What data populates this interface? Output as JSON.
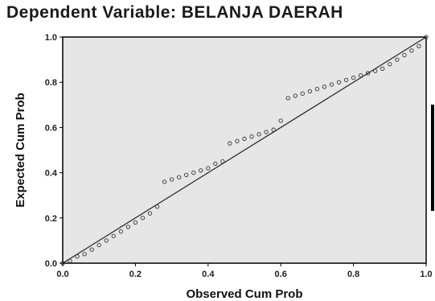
{
  "chart_data": {
    "type": "scatter",
    "title": "Dependent Variable: BELANJA DAERAH",
    "xlabel": "Observed Cum Prob",
    "ylabel": "Expected Cum Prob",
    "xlim": [
      0,
      1
    ],
    "ylim": [
      0,
      1
    ],
    "xticks": [
      "0.0",
      "0.2",
      "0.4",
      "0.6",
      "0.8",
      "1.0"
    ],
    "yticks": [
      "0.0",
      "0.2",
      "0.4",
      "0.6",
      "0.8",
      "1.0"
    ],
    "reference_line": [
      [
        0,
        0
      ],
      [
        1,
        1
      ]
    ],
    "grid": false,
    "plot_bg": "#e6e6e6",
    "point_color": "#333333",
    "line_color": "#222222",
    "points": [
      [
        0.0,
        0.0
      ],
      [
        0.02,
        0.01
      ],
      [
        0.04,
        0.03
      ],
      [
        0.06,
        0.04
      ],
      [
        0.08,
        0.06
      ],
      [
        0.1,
        0.08
      ],
      [
        0.12,
        0.1
      ],
      [
        0.14,
        0.12
      ],
      [
        0.16,
        0.14
      ],
      [
        0.18,
        0.16
      ],
      [
        0.2,
        0.18
      ],
      [
        0.22,
        0.2
      ],
      [
        0.24,
        0.22
      ],
      [
        0.26,
        0.25
      ],
      [
        0.28,
        0.36
      ],
      [
        0.3,
        0.37
      ],
      [
        0.32,
        0.38
      ],
      [
        0.34,
        0.39
      ],
      [
        0.36,
        0.4
      ],
      [
        0.38,
        0.41
      ],
      [
        0.4,
        0.42
      ],
      [
        0.42,
        0.44
      ],
      [
        0.44,
        0.45
      ],
      [
        0.46,
        0.53
      ],
      [
        0.48,
        0.54
      ],
      [
        0.5,
        0.55
      ],
      [
        0.52,
        0.56
      ],
      [
        0.54,
        0.57
      ],
      [
        0.56,
        0.58
      ],
      [
        0.58,
        0.59
      ],
      [
        0.6,
        0.63
      ],
      [
        0.62,
        0.73
      ],
      [
        0.64,
        0.74
      ],
      [
        0.66,
        0.75
      ],
      [
        0.68,
        0.76
      ],
      [
        0.7,
        0.77
      ],
      [
        0.72,
        0.78
      ],
      [
        0.74,
        0.79
      ],
      [
        0.76,
        0.8
      ],
      [
        0.78,
        0.81
      ],
      [
        0.8,
        0.82
      ],
      [
        0.82,
        0.83
      ],
      [
        0.84,
        0.84
      ],
      [
        0.86,
        0.85
      ],
      [
        0.88,
        0.86
      ],
      [
        0.9,
        0.88
      ],
      [
        0.92,
        0.9
      ],
      [
        0.94,
        0.92
      ],
      [
        0.96,
        0.94
      ],
      [
        0.98,
        0.96
      ],
      [
        1.0,
        1.0
      ]
    ]
  }
}
